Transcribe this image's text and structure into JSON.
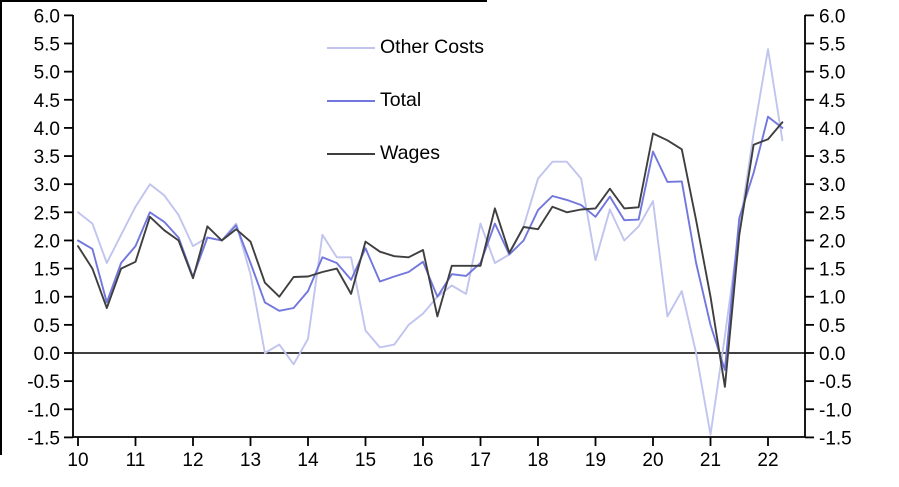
{
  "chart_data": {
    "type": "line",
    "title": "",
    "xlabel": "",
    "ylabel": "",
    "x_unit": "year (20xx, quarterly points)",
    "x": [
      10.0,
      10.25,
      10.5,
      10.75,
      11.0,
      11.25,
      11.5,
      11.75,
      12.0,
      12.25,
      12.5,
      12.75,
      13.0,
      13.25,
      13.5,
      13.75,
      14.0,
      14.25,
      14.5,
      14.75,
      15.0,
      15.25,
      15.5,
      15.75,
      16.0,
      16.25,
      16.5,
      16.75,
      17.0,
      17.25,
      17.5,
      17.75,
      18.0,
      18.25,
      18.5,
      18.75,
      19.0,
      19.25,
      19.5,
      19.75,
      20.0,
      20.25,
      20.5,
      20.75,
      21.0,
      21.25,
      21.5,
      21.75,
      22.0,
      22.25
    ],
    "series": [
      {
        "name": "Other Costs",
        "color": "#c0c4ee",
        "values": [
          2.5,
          2.3,
          1.6,
          2.1,
          2.6,
          3.0,
          2.8,
          2.45,
          1.9,
          2.05,
          2.0,
          2.3,
          1.4,
          0.0,
          0.15,
          -0.2,
          0.25,
          2.1,
          1.7,
          1.7,
          0.4,
          0.1,
          0.15,
          0.5,
          0.7,
          1.0,
          1.2,
          1.05,
          2.3,
          1.6,
          1.75,
          2.25,
          3.1,
          3.4,
          3.4,
          3.1,
          1.65,
          2.55,
          2.0,
          2.25,
          2.7,
          0.65,
          1.1,
          0.0,
          -1.45,
          0.3,
          2.2,
          3.9,
          5.4,
          3.78
        ]
      },
      {
        "name": "Total",
        "color": "#7277dd",
        "values": [
          2.0,
          1.85,
          0.9,
          1.6,
          1.9,
          2.5,
          2.33,
          2.05,
          1.35,
          2.05,
          2.0,
          2.27,
          1.6,
          0.9,
          0.75,
          0.8,
          1.1,
          1.7,
          1.6,
          1.3,
          1.86,
          1.27,
          1.36,
          1.44,
          1.62,
          1.0,
          1.4,
          1.37,
          1.6,
          2.3,
          1.75,
          2.0,
          2.54,
          2.79,
          2.72,
          2.63,
          2.42,
          2.78,
          2.36,
          2.37,
          3.58,
          3.04,
          3.05,
          1.6,
          0.5,
          -0.3,
          2.4,
          3.2,
          4.2,
          4.0
        ]
      },
      {
        "name": "Wages",
        "color": "#3f3f3f",
        "values": [
          1.9,
          1.5,
          0.8,
          1.5,
          1.62,
          2.42,
          2.18,
          2.0,
          1.33,
          2.25,
          2.0,
          2.2,
          1.98,
          1.25,
          1.0,
          1.35,
          1.36,
          1.44,
          1.5,
          1.05,
          1.98,
          1.8,
          1.72,
          1.7,
          1.83,
          0.65,
          1.55,
          1.55,
          1.55,
          2.57,
          1.78,
          2.24,
          2.2,
          2.6,
          2.5,
          2.55,
          2.57,
          2.92,
          2.57,
          2.59,
          3.9,
          3.78,
          3.62,
          2.36,
          1.0,
          -0.6,
          2.1,
          3.7,
          3.8,
          4.1
        ]
      }
    ],
    "ylim": [
      -1.5,
      6.0
    ],
    "ytick_step": 0.5,
    "yticks_left": [
      "6.0",
      "5.5",
      "5.0",
      "4.5",
      "4.0",
      "3.5",
      "3.0",
      "2.5",
      "2.0",
      "1.5",
      "1.0",
      "0.5",
      "0.0",
      "-0.5",
      "-1.0",
      "-1.5"
    ],
    "yticks_right": [
      "6.0",
      "5.5",
      "5.0",
      "4.5",
      "4.0",
      "3.5",
      "3.0",
      "2.5",
      "2.0",
      "1.5",
      "1.0",
      "0.5",
      "0.0",
      "-0.5",
      "-1.0",
      "-1.5"
    ],
    "xticks": [
      "10",
      "11",
      "12",
      "13",
      "14",
      "15",
      "16",
      "17",
      "18",
      "19",
      "20",
      "21",
      "22"
    ],
    "dual_axis": true,
    "zero_line": true,
    "grid": false,
    "legend_position": "top-center"
  }
}
